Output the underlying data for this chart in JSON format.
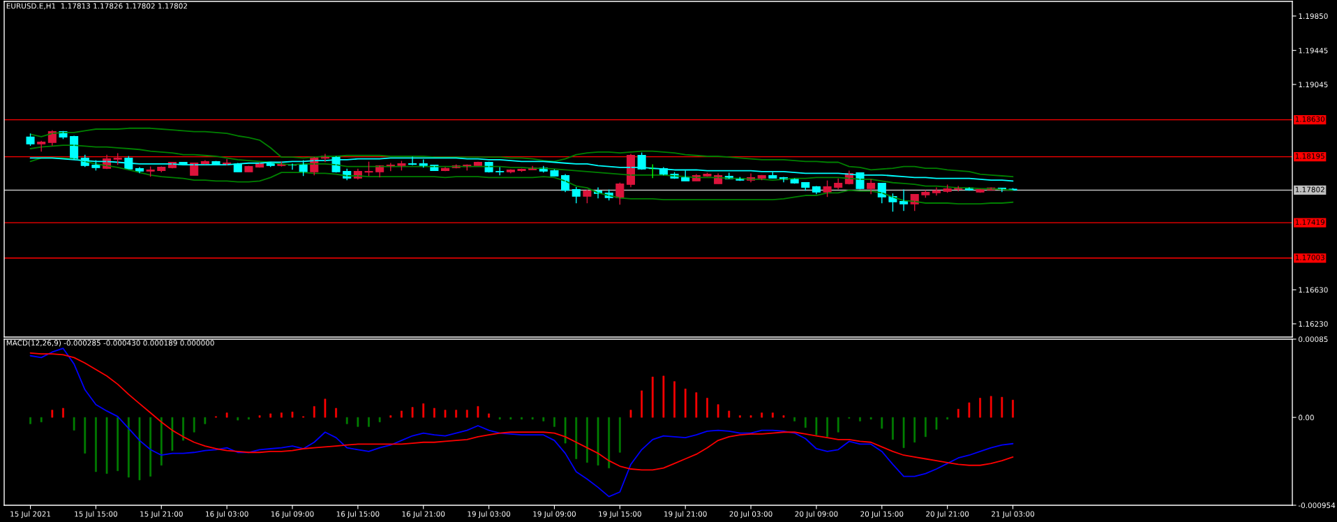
{
  "chart_data": [
    {
      "type": "candlestick",
      "title": "EURUSD.E,H1  1.17813 1.17826 1.17802 1.17802",
      "categories": [
        null,
        null,
        null,
        null,
        null,
        null,
        null,
        null,
        null,
        null,
        null,
        null,
        null,
        null,
        null,
        null,
        null,
        null,
        null,
        null,
        null,
        null,
        null,
        null,
        null,
        null,
        null,
        null,
        null,
        null,
        null,
        null,
        null,
        null,
        null,
        null,
        null,
        null,
        null,
        null,
        null,
        null,
        null,
        null,
        null,
        null,
        null,
        null,
        null,
        null,
        null,
        null,
        null,
        null,
        null,
        null,
        null,
        null,
        null,
        null,
        null,
        null,
        null,
        null,
        null,
        null,
        null,
        null,
        null,
        null,
        null,
        null,
        null,
        null,
        null,
        null,
        null,
        null,
        null,
        null,
        null,
        null,
        null,
        null,
        null,
        null,
        null,
        null,
        null,
        null,
        null
      ],
      "ohlc": [
        [
          1.18427,
          1.18468,
          1.18323,
          1.18345
        ],
        [
          1.18345,
          1.18383,
          1.18255,
          1.18367
        ],
        [
          1.18362,
          1.18507,
          1.18326,
          1.1849
        ],
        [
          1.1849,
          1.18498,
          1.18403,
          1.18427
        ],
        [
          1.18433,
          1.18441,
          1.18159,
          1.18173
        ],
        [
          1.18178,
          1.18219,
          1.18074,
          1.18091
        ],
        [
          1.18096,
          1.18154,
          1.18033,
          1.18066
        ],
        [
          1.18058,
          1.18219,
          1.1805,
          1.1817
        ],
        [
          1.18165,
          1.18236,
          1.18099,
          1.18178
        ],
        [
          1.18178,
          1.18203,
          1.1805,
          1.1805
        ],
        [
          1.18055,
          1.18072,
          1.18,
          1.18025
        ],
        [
          1.18025,
          1.1808,
          1.1796,
          1.18039
        ],
        [
          1.18033,
          1.1808,
          1.18014,
          1.18072
        ],
        [
          1.18066,
          1.18129,
          1.18058,
          1.18129
        ],
        [
          1.18129,
          1.18129,
          1.18105,
          1.18105
        ],
        [
          1.17976,
          1.18121,
          1.17976,
          1.18121
        ],
        [
          1.18113,
          1.18154,
          1.18105,
          1.18137
        ],
        [
          1.18137,
          1.18146,
          1.18105,
          1.18105
        ],
        [
          1.18105,
          1.1817,
          1.18096,
          1.18121
        ],
        [
          1.1811,
          1.18121,
          1.18017,
          1.18017
        ],
        [
          1.18017,
          1.18088,
          1.18017,
          1.1808
        ],
        [
          1.18074,
          1.18121,
          1.18066,
          1.18121
        ],
        [
          1.18129,
          1.18129,
          1.18074,
          1.18091
        ],
        [
          1.18091,
          1.18137,
          1.1808,
          1.18105
        ],
        [
          1.18105,
          1.18113,
          1.18042,
          1.18096
        ],
        [
          1.18105,
          1.18154,
          1.17968,
          1.18017
        ],
        [
          1.18017,
          1.18192,
          1.17976,
          1.18192
        ],
        [
          1.18178,
          1.18228,
          1.18132,
          1.18203
        ],
        [
          1.18203,
          1.18203,
          1.18009,
          1.18017
        ],
        [
          1.18022,
          1.18055,
          1.17919,
          1.17943
        ],
        [
          1.17943,
          1.18055,
          1.17927,
          1.18022
        ],
        [
          1.18014,
          1.18137,
          1.17968,
          1.18022
        ],
        [
          1.18017,
          1.18096,
          1.17951,
          1.18088
        ],
        [
          1.18083,
          1.18121,
          1.18025,
          1.18096
        ],
        [
          1.18091,
          1.18146,
          1.18033,
          1.18113
        ],
        [
          1.18113,
          1.18195,
          1.18096,
          1.18105
        ],
        [
          1.18113,
          1.18162,
          1.18066,
          1.18091
        ],
        [
          1.18096,
          1.18096,
          1.18033,
          1.18033
        ],
        [
          1.18033,
          1.18072,
          1.18025,
          1.18058
        ],
        [
          1.18066,
          1.18105,
          1.18058,
          1.18088
        ],
        [
          1.1808,
          1.18105,
          1.18033,
          1.18096
        ],
        [
          1.18091,
          1.18137,
          1.18091,
          1.18129
        ],
        [
          1.18129,
          1.18137,
          1.18009,
          1.18017
        ],
        [
          1.18022,
          1.18072,
          1.17976,
          1.18017
        ],
        [
          1.18017,
          1.18047,
          1.18,
          1.18039
        ],
        [
          1.18033,
          1.18055,
          1.18017,
          1.18047
        ],
        [
          1.18042,
          1.18088,
          1.18042,
          1.18063
        ],
        [
          1.18063,
          1.18088,
          1.18009,
          1.18025
        ],
        [
          1.18031,
          1.18047,
          1.17968,
          1.17968
        ],
        [
          1.17973,
          1.1799,
          1.17779,
          1.17801
        ],
        [
          1.17809,
          1.17839,
          1.17648,
          1.1773
        ],
        [
          1.1773,
          1.17806,
          1.17648,
          1.17793
        ],
        [
          1.17793,
          1.17834,
          1.17705,
          1.17763
        ],
        [
          1.17768,
          1.17809,
          1.17681,
          1.17713
        ],
        [
          1.17713,
          1.17891,
          1.17631,
          1.17875
        ],
        [
          1.17869,
          1.18228,
          1.17836,
          1.18211
        ],
        [
          1.18211,
          1.18244,
          1.18042,
          1.1805
        ],
        [
          1.18055,
          1.18105,
          1.17943,
          1.18055
        ],
        [
          1.18055,
          1.18072,
          1.17976,
          1.17984
        ],
        [
          1.1799,
          1.18014,
          1.17935,
          1.17943
        ],
        [
          1.17949,
          1.18033,
          1.1791,
          1.1791
        ],
        [
          1.1791,
          1.1799,
          1.1791,
          1.17973
        ],
        [
          1.17968,
          1.18006,
          1.1796,
          1.1799
        ],
        [
          1.17878,
          1.17998,
          1.17878,
          1.17973
        ],
        [
          1.17965,
          1.18006,
          1.17935,
          1.17935
        ],
        [
          1.1794,
          1.17957,
          1.1791,
          1.17919
        ],
        [
          1.17919,
          1.17998,
          1.17894,
          1.17949
        ],
        [
          1.17943,
          1.17981,
          1.17919,
          1.17973
        ],
        [
          1.17973,
          1.18014,
          1.17943,
          1.17943
        ],
        [
          1.17949,
          1.17957,
          1.17894,
          1.17927
        ],
        [
          1.17932,
          1.1794,
          1.17878,
          1.17886
        ],
        [
          1.17891,
          1.17891,
          1.17795,
          1.17836
        ],
        [
          1.17842,
          1.1785,
          1.17754,
          1.17779
        ],
        [
          1.17779,
          1.17916,
          1.17722,
          1.17842
        ],
        [
          1.17836,
          1.1794,
          1.17812,
          1.17883
        ],
        [
          1.17878,
          1.18031,
          1.17869,
          1.17998
        ],
        [
          1.18006,
          1.18006,
          1.17812,
          1.1782
        ],
        [
          1.1782,
          1.17932,
          1.17754,
          1.17883
        ],
        [
          1.17883,
          1.17883,
          1.17648,
          1.17722
        ],
        [
          1.17727,
          1.17763,
          1.17549,
          1.17664
        ],
        [
          1.1767,
          1.17809,
          1.17558,
          1.1764
        ],
        [
          1.1764,
          1.17752,
          1.17558,
          1.17752
        ],
        [
          1.17746,
          1.17801,
          1.17713,
          1.17776
        ],
        [
          1.17771,
          1.17834,
          1.17738,
          1.17795
        ],
        [
          1.17787,
          1.17867,
          1.17771,
          1.17817
        ],
        [
          1.17812,
          1.1785,
          1.17787,
          1.17828
        ],
        [
          1.17828,
          1.17834,
          1.17795,
          1.17804
        ],
        [
          1.17779,
          1.17817,
          1.17771,
          1.17809
        ],
        [
          1.17804,
          1.17834,
          1.17795,
          1.17828
        ],
        [
          1.17826,
          1.17826,
          1.17779,
          1.17812
        ],
        [
          1.17813,
          1.17826,
          1.17802,
          1.17802
        ]
      ],
      "colors": [
        "#00ffff",
        "#dc143c",
        "#dc143c",
        "#00ffff",
        "#00ffff",
        "#00ffff",
        "#00ffff",
        "#dc143c",
        "#dc143c",
        "#00ffff",
        "#00ffff",
        "#dc143c",
        "#dc143c",
        "#dc143c",
        "#00ffff",
        "#dc143c",
        "#dc143c",
        "#00ffff",
        "#dc143c",
        "#00ffff",
        "#dc143c",
        "#dc143c",
        "#00ffff",
        "#dc143c",
        "#00ffff",
        "#00ffff",
        "#dc143c",
        "#dc143c",
        "#00ffff",
        "#00ffff",
        "#dc143c",
        "#dc143c",
        "#dc143c",
        "#dc143c",
        "#dc143c",
        "#00ffff",
        "#00ffff",
        "#00ffff",
        "#dc143c",
        "#dc143c",
        "#dc143c",
        "#dc143c",
        "#00ffff",
        "#00ffff",
        "#dc143c",
        "#dc143c",
        "#dc143c",
        "#00ffff",
        "#00ffff",
        "#00ffff",
        "#00ffff",
        "#dc143c",
        "#00ffff",
        "#00ffff",
        "#dc143c",
        "#dc143c",
        "#00ffff",
        "#00ff00",
        "#00ffff",
        "#00ffff",
        "#00ffff",
        "#dc143c",
        "#dc143c",
        "#dc143c",
        "#00ffff",
        "#00ffff",
        "#dc143c",
        "#dc143c",
        "#00ffff",
        "#00ffff",
        "#00ffff",
        "#00ffff",
        "#00ffff",
        "#dc143c",
        "#dc143c",
        "#dc143c",
        "#00ffff",
        "#dc143c",
        "#00ffff",
        "#00ffff",
        "#00ffff",
        "#dc143c",
        "#dc143c",
        "#dc143c",
        "#dc143c",
        "#dc143c",
        "#00ffff",
        "#dc143c",
        "#dc143c",
        "#00ffff",
        "#00ffff"
      ],
      "series": [
        {
          "type": "line",
          "color": "#008000",
          "values": [
            1.1846,
            1.1843,
            1.1847,
            1.1848,
            1.1848,
            1.185,
            1.1852,
            1.1852,
            1.1852,
            1.1853,
            1.1853,
            1.1853,
            1.1852,
            1.1851,
            1.185,
            1.1849,
            1.1849,
            1.1848,
            1.1847,
            1.1844,
            1.1842,
            1.1839,
            1.183,
            1.1819,
            1.1819,
            1.1818,
            1.1819,
            1.182,
            1.182,
            1.1821,
            1.1821,
            1.1821,
            1.1821,
            1.182,
            1.182,
            1.182,
            1.182,
            1.1819,
            1.1819,
            1.1819,
            1.1819,
            1.1819,
            1.1819,
            1.1819,
            1.1818,
            1.1818,
            1.1817,
            1.1815,
            1.1814,
            1.1817,
            1.1822,
            1.1824,
            1.1825,
            1.1825,
            1.1824,
            1.1825,
            1.1826,
            1.1826,
            1.1825,
            1.1824,
            1.1822,
            1.1821,
            1.182,
            1.182,
            1.1819,
            1.1818,
            1.1817,
            1.1816,
            1.1816,
            1.1816,
            1.1815,
            1.1814,
            1.1814,
            1.1813,
            1.1813,
            1.1808,
            1.1807,
            1.1804,
            1.1805,
            1.1806,
            1.1808,
            1.1808,
            1.1806,
            1.1806,
            1.1804,
            1.1803,
            1.1802,
            1.1799,
            1.1798,
            1.1797,
            1.1796
          ]
        },
        {
          "type": "line",
          "color": "#008000",
          "values": [
            1.1829,
            1.1831,
            1.1832,
            1.1833,
            1.1833,
            1.1832,
            1.1831,
            1.1831,
            1.183,
            1.1829,
            1.1828,
            1.1826,
            1.1825,
            1.1824,
            1.1822,
            1.1822,
            1.1821,
            1.182,
            1.1818,
            1.1816,
            1.1815,
            1.1814,
            1.1813,
            1.1811,
            1.181,
            1.1811,
            1.1811,
            1.1811,
            1.181,
            1.1808,
            1.1808,
            1.1808,
            1.1808,
            1.1808,
            1.1808,
            1.1808,
            1.1808,
            1.1808,
            1.1808,
            1.1808,
            1.1808,
            1.1808,
            1.1808,
            1.1808,
            1.1807,
            1.1807,
            1.1806,
            1.1806,
            1.1805,
            1.1804,
            1.1803,
            1.1802,
            1.1801,
            1.18,
            1.1799,
            1.1798,
            1.1798,
            1.1798,
            1.1798,
            1.1797,
            1.1796,
            1.1795,
            1.1795,
            1.1795,
            1.1794,
            1.1794,
            1.1793,
            1.1793,
            1.1792,
            1.1793,
            1.1794,
            1.1794,
            1.1795,
            1.1795,
            1.1795,
            1.1794,
            1.1793,
            1.1793,
            1.1791,
            1.1789,
            1.1788,
            1.1787,
            1.1785,
            1.1785,
            1.1784,
            1.1783,
            1.1783,
            1.1782,
            1.1782,
            1.1781,
            1.178
          ]
        },
        {
          "type": "line",
          "color": "#008000",
          "values": [
            1.1814,
            1.1818,
            1.1818,
            1.1818,
            1.1817,
            1.1814,
            1.1811,
            1.1809,
            1.1807,
            1.1804,
            1.1801,
            1.1798,
            1.1796,
            1.1795,
            1.1794,
            1.1792,
            1.1792,
            1.1791,
            1.1791,
            1.179,
            1.179,
            1.1791,
            1.1795,
            1.1801,
            1.1801,
            1.1801,
            1.18,
            1.18,
            1.1799,
            1.1797,
            1.1797,
            1.1796,
            1.1796,
            1.1796,
            1.1796,
            1.1796,
            1.1796,
            1.1796,
            1.1795,
            1.1796,
            1.1796,
            1.1796,
            1.1795,
            1.1795,
            1.1795,
            1.1795,
            1.1795,
            1.1796,
            1.1795,
            1.1791,
            1.1785,
            1.1783,
            1.1777,
            1.1774,
            1.1771,
            1.177,
            1.177,
            1.177,
            1.1769,
            1.1769,
            1.1769,
            1.1769,
            1.1769,
            1.1769,
            1.1769,
            1.1769,
            1.1769,
            1.1769,
            1.1769,
            1.177,
            1.1772,
            1.1774,
            1.1774,
            1.1777,
            1.1777,
            1.178,
            1.1779,
            1.1779,
            1.1777,
            1.1772,
            1.1768,
            1.1767,
            1.1765,
            1.1765,
            1.1765,
            1.1764,
            1.1764,
            1.1764,
            1.1765,
            1.1765,
            1.1766
          ]
        },
        {
          "type": "line",
          "color": "#00ffff",
          "values": [
            1.1818,
            1.1818,
            1.1818,
            1.1817,
            1.1816,
            1.1815,
            1.1814,
            1.1814,
            1.1813,
            1.1812,
            1.1811,
            1.1811,
            1.1811,
            1.1811,
            1.181,
            1.181,
            1.181,
            1.181,
            1.181,
            1.1811,
            1.1812,
            1.1812,
            1.1813,
            1.1813,
            1.1814,
            1.1814,
            1.1815,
            1.1815,
            1.1816,
            1.1816,
            1.1817,
            1.1817,
            1.1817,
            1.1818,
            1.1818,
            1.1818,
            1.1818,
            1.1818,
            1.1818,
            1.1818,
            1.1817,
            1.1817,
            1.1816,
            1.1816,
            1.1815,
            1.1814,
            1.1814,
            1.1814,
            1.1813,
            1.1812,
            1.1811,
            1.1811,
            1.1809,
            1.1808,
            1.1807,
            1.1807,
            1.1807,
            1.1806,
            1.1805,
            1.1804,
            1.1804,
            1.1804,
            1.1803,
            1.1803,
            1.1803,
            1.1803,
            1.1803,
            1.1802,
            1.1802,
            1.1802,
            1.1801,
            1.18,
            1.18,
            1.18,
            1.18,
            1.1799,
            1.1798,
            1.1798,
            1.1798,
            1.1797,
            1.1796,
            1.1795,
            1.1795,
            1.1794,
            1.1794,
            1.1794,
            1.1794,
            1.1793,
            1.1792,
            1.1792,
            1.1791
          ]
        }
      ],
      "ylim": [
        1.16074,
        1.20022
      ],
      "yticks": [
        {
          "value": 1.1985,
          "label": "1.19850"
        },
        1.19445,
        1.19045,
        {
          "value": 1.1663,
          "label": "1.16630"
        },
        {
          "value": 1.1623,
          "label": "1.16230"
        }
      ],
      "ref_lines": [
        {
          "axis": "y",
          "value": 1.1863,
          "label": "1.18630",
          "color": "#ff0000"
        },
        {
          "axis": "y",
          "value": 1.18195,
          "label": "1.18195",
          "color": "#ff0000"
        },
        {
          "axis": "y",
          "value": 1.17802,
          "label": "1.17802",
          "color": "#c0c0c0"
        },
        {
          "axis": "y",
          "value": 1.17419,
          "label": "1.17419",
          "color": "#ff0000"
        },
        {
          "axis": "y",
          "value": 1.17003,
          "label": "1.17003",
          "color": "#ff0000"
        }
      ],
      "tick_labels": "y"
    },
    {
      "type": "bar",
      "title": "MACD(12,26,9) -0.000285 -0.000430 0.000189 0.000000",
      "categories": [
        "15 Jul 2021",
        null,
        null,
        null,
        null,
        null,
        "15 Jul 15:00",
        null,
        null,
        null,
        null,
        null,
        "15 Jul 21:00",
        null,
        null,
        null,
        null,
        null,
        "16 Jul 03:00",
        null,
        null,
        null,
        null,
        null,
        "16 Jul 09:00",
        null,
        null,
        null,
        null,
        null,
        "16 Jul 15:00",
        null,
        null,
        null,
        null,
        null,
        "16 Jul 21:00",
        null,
        null,
        null,
        null,
        null,
        "19 Jul 03:00",
        null,
        null,
        null,
        null,
        null,
        "19 Jul 09:00",
        null,
        null,
        null,
        null,
        null,
        "19 Jul 15:00",
        null,
        null,
        null,
        null,
        null,
        "19 Jul 21:00",
        null,
        null,
        null,
        null,
        null,
        "20 Jul 03:00",
        null,
        null,
        null,
        null,
        null,
        "20 Jul 09:00",
        null,
        null,
        null,
        null,
        null,
        "20 Jul 15:00",
        null,
        null,
        null,
        null,
        null,
        "20 Jul 21:00",
        null,
        null,
        null,
        null,
        null,
        "21 Jul 03:00"
      ],
      "series": [
        {
          "type": "bar",
          "color": "#ff0000",
          "values": [
            null,
            null,
            8e-05,
            0.0001,
            null,
            null,
            null,
            null,
            null,
            null,
            null,
            null,
            null,
            null,
            null,
            null,
            null,
            1e-05,
            5e-05,
            null,
            null,
            2e-05,
            4e-05,
            5e-05,
            6e-05,
            1e-05,
            0.00012,
            0.0002,
            0.0001,
            null,
            null,
            null,
            null,
            2e-05,
            7e-05,
            0.00011,
            0.00015,
            0.0001,
            8e-05,
            8e-05,
            8e-05,
            0.00012,
            4e-05,
            null,
            null,
            null,
            null,
            null,
            null,
            null,
            null,
            null,
            null,
            null,
            null,
            8e-05,
            0.00029,
            0.00044,
            0.00045,
            0.00039,
            0.00031,
            0.00027,
            0.00021,
            0.00014,
            7e-05,
            2e-05,
            2e-05,
            5e-05,
            5e-05,
            2e-05,
            null,
            null,
            null,
            null,
            null,
            null,
            null,
            null,
            null,
            null,
            null,
            null,
            null,
            null,
            null,
            9e-05,
            0.00016,
            0.00021,
            0.00023,
            0.00022,
            0.000189
          ]
        },
        {
          "type": "bar",
          "color": "#008000",
          "values": [
            -7e-05,
            -5e-05,
            null,
            null,
            -0.00014,
            -0.00039,
            -0.00059,
            -0.00061,
            -0.00058,
            -0.00065,
            -0.00068,
            -0.00064,
            -0.00052,
            -0.00036,
            -0.00025,
            -0.00016,
            -7e-05,
            null,
            null,
            -3e-05,
            -2e-05,
            null,
            null,
            null,
            null,
            null,
            null,
            null,
            null,
            -7e-05,
            -0.0001,
            -0.0001,
            -5e-05,
            null,
            null,
            null,
            null,
            null,
            null,
            null,
            null,
            null,
            null,
            -2e-05,
            -2e-05,
            -2e-05,
            -2e-05,
            -4e-05,
            -0.0001,
            -0.00028,
            -0.00045,
            -0.00049,
            -0.00052,
            -0.00055,
            -0.00038,
            null,
            null,
            null,
            null,
            null,
            null,
            null,
            null,
            null,
            null,
            null,
            null,
            null,
            null,
            null,
            -4e-05,
            -0.00011,
            -0.00019,
            -0.00021,
            -0.00016,
            -1e-05,
            -4e-05,
            -2e-05,
            -0.00012,
            -0.00024,
            -0.00033,
            -0.00027,
            -0.00021,
            -0.00013,
            -2e-05,
            null,
            null,
            null,
            null,
            null,
            null
          ]
        },
        {
          "type": "line",
          "color": "#0000ff",
          "values": [
            0.00067,
            0.00065,
            0.00071,
            0.00075,
            0.00058,
            0.0003,
            0.00014,
            7e-05,
            1e-05,
            -0.00012,
            -0.00025,
            -0.00035,
            -0.00041,
            -0.00039,
            -0.00039,
            -0.00038,
            -0.00036,
            -0.00035,
            -0.00033,
            -0.00038,
            -0.00038,
            -0.00035,
            -0.00034,
            -0.00033,
            -0.00031,
            -0.00034,
            -0.00027,
            -0.00016,
            -0.00022,
            -0.00033,
            -0.00035,
            -0.00037,
            -0.00033,
            -0.0003,
            -0.00025,
            -0.0002,
            -0.00017,
            -0.00019,
            -0.0002,
            -0.00017,
            -0.00014,
            -9e-05,
            -0.00014,
            -0.00017,
            -0.00018,
            -0.00019,
            -0.00019,
            -0.00019,
            -0.00025,
            -0.00039,
            -0.00059,
            -0.00067,
            -0.00076,
            -0.00086,
            -0.00081,
            -0.00051,
            -0.00035,
            -0.00024,
            -0.0002,
            -0.00021,
            -0.00022,
            -0.00019,
            -0.00015,
            -0.00014,
            -0.00015,
            -0.00017,
            -0.00017,
            -0.00014,
            -0.00014,
            -0.00015,
            -0.00017,
            -0.00023,
            -0.00034,
            -0.00037,
            -0.00035,
            -0.00026,
            -0.00029,
            -0.00029,
            -0.00037,
            -0.00051,
            -0.00064,
            -0.00064,
            -0.00061,
            -0.00056,
            -0.0005,
            -0.00044,
            -0.00041,
            -0.00037,
            -0.00033,
            -0.0003,
            -0.000285
          ]
        },
        {
          "type": "line",
          "color": "#ff0000",
          "values": [
            0.0007,
            0.00069,
            0.00069,
            0.00068,
            0.00065,
            0.00059,
            0.00052,
            0.00045,
            0.00036,
            0.00025,
            0.00015,
            5e-05,
            -5e-05,
            -0.00014,
            -0.00021,
            -0.00027,
            -0.00031,
            -0.00034,
            -0.00036,
            -0.00037,
            -0.00038,
            -0.00038,
            -0.00037,
            -0.00037,
            -0.00036,
            -0.00034,
            -0.00033,
            -0.00032,
            -0.00031,
            -0.0003,
            -0.00029,
            -0.00029,
            -0.00029,
            -0.00029,
            -0.00029,
            -0.00028,
            -0.00027,
            -0.00027,
            -0.00026,
            -0.00025,
            -0.00024,
            -0.00021,
            -0.00019,
            -0.00017,
            -0.00016,
            -0.00016,
            -0.00016,
            -0.00016,
            -0.00017,
            -0.00021,
            -0.00027,
            -0.00033,
            -0.00039,
            -0.00047,
            -0.00053,
            -0.00056,
            -0.00057,
            -0.00057,
            -0.00055,
            -0.0005,
            -0.00045,
            -0.0004,
            -0.00033,
            -0.00025,
            -0.00021,
            -0.00019,
            -0.00018,
            -0.00018,
            -0.00017,
            -0.00016,
            -0.00016,
            -0.00018,
            -0.0002,
            -0.00022,
            -0.00024,
            -0.00024,
            -0.00026,
            -0.00027,
            -0.00032,
            -0.00037,
            -0.00041,
            -0.00043,
            -0.00045,
            -0.00047,
            -0.00049,
            -0.00051,
            -0.00052,
            -0.00052,
            -0.0005,
            -0.00047,
            -0.00043
          ]
        }
      ],
      "ylim": [
        -0.000954,
        0.00085
      ],
      "yticks": [
        0.00085,
        {
          "value": 0,
          "label": "0.00"
        },
        -0.000954
      ]
    }
  ]
}
